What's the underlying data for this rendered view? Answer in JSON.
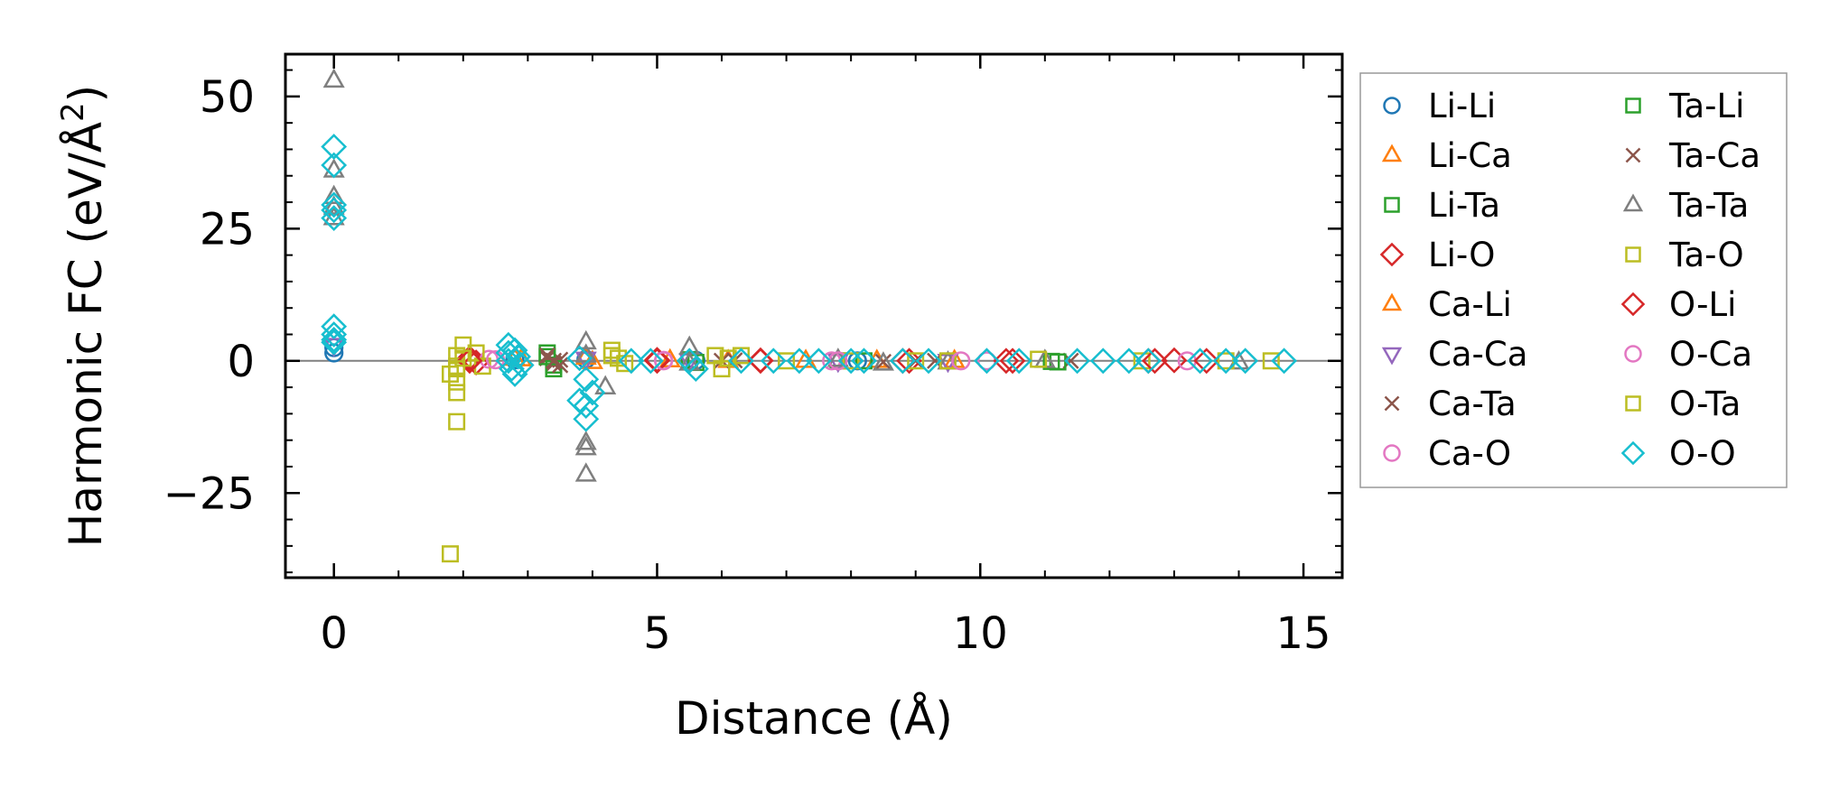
{
  "chart_data": {
    "type": "scatter",
    "title": "",
    "xlabel": "Distance (Å)",
    "ylabel": "Harmonic FC (eV/Å",
    "ylabel_sup": "2",
    "ylabel_end": ")",
    "xlim": [
      -0.75,
      15.6
    ],
    "ylim": [
      -41,
      58
    ],
    "x_ticks": [
      0,
      5,
      10,
      15
    ],
    "x_tick_labels": [
      "0",
      "5",
      "10",
      "15"
    ],
    "y_ticks": [
      -25,
      0,
      25,
      50
    ],
    "y_tick_labels": [
      "−25",
      "0",
      "25",
      "50"
    ],
    "zero_line": true,
    "legend_position": "outside-right",
    "series": [
      {
        "name": "Li-Li",
        "marker": "circle",
        "color": "#1f77b4",
        "points": [
          [
            0,
            1.5
          ],
          [
            0,
            2.5
          ],
          [
            2.8,
            0.2
          ],
          [
            3.9,
            0.3
          ],
          [
            5.6,
            0.1
          ],
          [
            8.1,
            0.0
          ]
        ]
      },
      {
        "name": "Li-Ca",
        "marker": "triangle-up",
        "color": "#ff7f0e",
        "points": [
          [
            2.8,
            0.4
          ],
          [
            3.9,
            0.6
          ],
          [
            5.2,
            0.1
          ],
          [
            7.3,
            0.0
          ],
          [
            9.6,
            0.0
          ]
        ]
      },
      {
        "name": "Li-Ta",
        "marker": "square",
        "color": "#2ca02c",
        "points": [
          [
            3.3,
            1.5
          ],
          [
            3.4,
            -0.8
          ],
          [
            5.5,
            0.2
          ],
          [
            7.8,
            0.0
          ],
          [
            11.1,
            -0.1
          ]
        ]
      },
      {
        "name": "Li-O",
        "marker": "diamond",
        "color": "#d62728",
        "points": [
          [
            2.1,
            0.5
          ],
          [
            2.2,
            -0.3
          ],
          [
            5.0,
            0.2
          ],
          [
            6.6,
            0.1
          ],
          [
            8.8,
            0.0
          ],
          [
            10.5,
            0.0
          ],
          [
            12.6,
            0.0
          ],
          [
            13.0,
            0.1
          ]
        ]
      },
      {
        "name": "Ca-Li",
        "marker": "triangle-up",
        "color": "#ff7f0e",
        "points": [
          [
            2.9,
            0.3
          ],
          [
            4.0,
            -0.2
          ],
          [
            6.1,
            0.0
          ],
          [
            8.4,
            0.0
          ]
        ]
      },
      {
        "name": "Ca-Ca",
        "marker": "triangle-down",
        "color": "#9467bd",
        "points": [
          [
            0,
            3.0
          ],
          [
            3.9,
            0.4
          ],
          [
            5.5,
            0.1
          ],
          [
            7.8,
            0.0
          ],
          [
            9.5,
            0.0
          ]
        ]
      },
      {
        "name": "Ca-Ta",
        "marker": "x",
        "color": "#8c564b",
        "points": [
          [
            3.3,
            0.5
          ],
          [
            3.4,
            -0.5
          ],
          [
            3.5,
            0.2
          ],
          [
            6.2,
            0.1
          ],
          [
            8.5,
            -0.2
          ],
          [
            9.3,
            0.0
          ],
          [
            11.4,
            0.0
          ]
        ]
      },
      {
        "name": "Ca-O",
        "marker": "circle",
        "color": "#e377c2",
        "points": [
          [
            2.4,
            0.3
          ],
          [
            5.1,
            0.1
          ],
          [
            7.7,
            0.0
          ],
          [
            10.1,
            0.0
          ],
          [
            13.2,
            0.0
          ]
        ]
      },
      {
        "name": "Ta-Li",
        "marker": "square",
        "color": "#2ca02c",
        "points": [
          [
            3.3,
            0.8
          ],
          [
            3.4,
            -1.5
          ],
          [
            5.6,
            -0.3
          ],
          [
            8.2,
            0.0
          ],
          [
            11.2,
            -0.2
          ]
        ]
      },
      {
        "name": "Ta-Ca",
        "marker": "x",
        "color": "#8c564b",
        "points": [
          [
            3.3,
            1.0
          ],
          [
            3.4,
            0.0
          ],
          [
            3.5,
            -0.8
          ],
          [
            6.0,
            0.0
          ],
          [
            9.0,
            0.0
          ]
        ]
      },
      {
        "name": "Ta-Ta",
        "marker": "triangle-up",
        "color": "#7f7f7f",
        "points": [
          [
            0,
            53
          ],
          [
            0,
            36
          ],
          [
            0,
            31
          ],
          [
            0,
            29
          ],
          [
            0,
            27
          ],
          [
            3.9,
            3.5
          ],
          [
            3.9,
            1.0
          ],
          [
            3.9,
            -15.5
          ],
          [
            3.9,
            -16.5
          ],
          [
            3.9,
            -21.5
          ],
          [
            4.2,
            -5.0
          ],
          [
            5.5,
            2.5
          ],
          [
            5.5,
            -0.5
          ],
          [
            7.8,
            0.2
          ],
          [
            8.5,
            -0.5
          ],
          [
            9.5,
            -0.3
          ],
          [
            11.0,
            0.0
          ],
          [
            14.0,
            -0.3
          ]
        ]
      },
      {
        "name": "Ta-O",
        "marker": "square",
        "color": "#bcbd22",
        "points": [
          [
            1.8,
            -36.5
          ],
          [
            1.9,
            -11.5
          ],
          [
            1.9,
            -6.0
          ],
          [
            1.9,
            -4.0
          ],
          [
            1.9,
            -1.0
          ],
          [
            1.9,
            1.0
          ],
          [
            2.0,
            3.0
          ],
          [
            1.8,
            -2.5
          ],
          [
            2.2,
            1.5
          ],
          [
            2.3,
            -1.0
          ],
          [
            4.3,
            2.0
          ],
          [
            4.4,
            0.5
          ],
          [
            4.5,
            -0.5
          ],
          [
            5.9,
            1.0
          ],
          [
            6.0,
            -1.5
          ],
          [
            6.3,
            1.0
          ],
          [
            7.0,
            0.0
          ],
          [
            8.0,
            0.0
          ],
          [
            9.5,
            0.0
          ],
          [
            10.9,
            0.3
          ],
          [
            12.5,
            0.0
          ],
          [
            14.5,
            0.0
          ]
        ]
      },
      {
        "name": "O-Li",
        "marker": "diamond",
        "color": "#d62728",
        "points": [
          [
            2.1,
            0.0
          ],
          [
            5.0,
            0.0
          ],
          [
            6.6,
            0.0
          ],
          [
            8.9,
            0.0
          ],
          [
            10.4,
            0.0
          ],
          [
            12.7,
            0.0
          ],
          [
            13.5,
            0.0
          ]
        ]
      },
      {
        "name": "O-Ca",
        "marker": "circle",
        "color": "#e377c2",
        "points": [
          [
            2.5,
            0.2
          ],
          [
            5.1,
            0.0
          ],
          [
            7.8,
            0.0
          ],
          [
            9.7,
            0.0
          ]
        ]
      },
      {
        "name": "O-Ta",
        "marker": "square",
        "color": "#bcbd22",
        "points": [
          [
            1.9,
            -1.5
          ],
          [
            2.0,
            0.5
          ],
          [
            4.3,
            1.0
          ],
          [
            6.1,
            0.5
          ],
          [
            9.0,
            0.0
          ],
          [
            13.8,
            0.0
          ]
        ]
      },
      {
        "name": "O-O",
        "marker": "diamond",
        "color": "#17becf",
        "points": [
          [
            0,
            40.5
          ],
          [
            0,
            37.0
          ],
          [
            0,
            29.5
          ],
          [
            0,
            28.5
          ],
          [
            0,
            27.0
          ],
          [
            0,
            6.5
          ],
          [
            0,
            5.0
          ],
          [
            0,
            4.0
          ],
          [
            0,
            3.5
          ],
          [
            2.7,
            3.0
          ],
          [
            2.7,
            1.5
          ],
          [
            2.7,
            0.0
          ],
          [
            2.75,
            -1.5
          ],
          [
            2.8,
            -2.5
          ],
          [
            2.8,
            2.0
          ],
          [
            2.85,
            0.8
          ],
          [
            2.9,
            -0.8
          ],
          [
            3.8,
            0.5
          ],
          [
            3.9,
            -3.5
          ],
          [
            3.8,
            -7.5
          ],
          [
            3.9,
            -8.5
          ],
          [
            3.9,
            -11.0
          ],
          [
            4.0,
            -6.0
          ],
          [
            4.6,
            0.0
          ],
          [
            4.9,
            0.0
          ],
          [
            5.5,
            0.0
          ],
          [
            5.6,
            -1.5
          ],
          [
            6.3,
            0.0
          ],
          [
            6.8,
            0.0
          ],
          [
            7.2,
            0.0
          ],
          [
            7.5,
            0.0
          ],
          [
            8.0,
            0.0
          ],
          [
            8.2,
            0.0
          ],
          [
            8.8,
            0.0
          ],
          [
            9.2,
            0.0
          ],
          [
            10.1,
            0.0
          ],
          [
            10.6,
            0.0
          ],
          [
            11.5,
            0.0
          ],
          [
            11.9,
            0.0
          ],
          [
            12.3,
            0.0
          ],
          [
            12.6,
            0.0
          ],
          [
            13.4,
            0.0
          ],
          [
            13.8,
            0.0
          ],
          [
            14.1,
            0.0
          ],
          [
            14.7,
            0.0
          ]
        ]
      }
    ]
  }
}
